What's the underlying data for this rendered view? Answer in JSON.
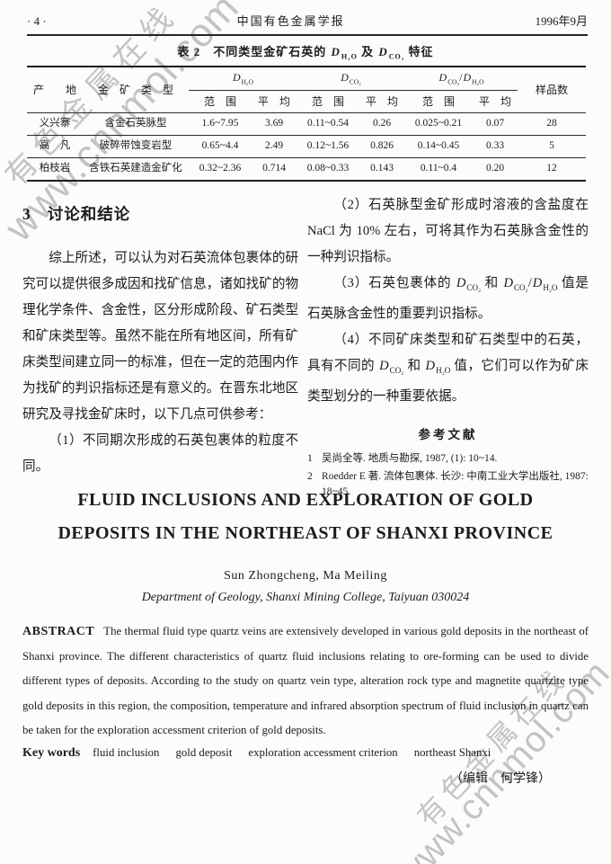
{
  "watermark": {
    "site_name": "有色金属在线",
    "site_url": "www.cnnmol.com"
  },
  "header": {
    "page_number": "· 4 ·",
    "journal_title": "中国有色金属学报",
    "issue_date": "1996年9月"
  },
  "table": {
    "caption_rich": [
      {
        "t": "表 2　不同类型金矿石英的 "
      },
      {
        "i": "D"
      },
      {
        "s": "H₂O"
      },
      {
        "t": " 及 "
      },
      {
        "i": "D"
      },
      {
        "s": "CO₂"
      },
      {
        "t": " 特征"
      }
    ],
    "col_place": "产　　地",
    "col_type": "金　矿　类　型",
    "col_samples": "样品数",
    "groups": {
      "h2o": [
        {
          "i": "D"
        },
        {
          "s": "H₂O"
        }
      ],
      "co2": [
        {
          "i": "D"
        },
        {
          "s": "CO₂"
        }
      ],
      "ratio": [
        {
          "i": "D"
        },
        {
          "s": "CO₂"
        },
        {
          "t": "/"
        },
        {
          "i": "D"
        },
        {
          "s": "H₂O"
        }
      ]
    },
    "sub_range": "范　围",
    "sub_avg": "平　均",
    "rows": [
      {
        "place": "义兴寨",
        "type": "含金石英脉型",
        "h2o_range": "1.6~7.95",
        "h2o_avg": "3.69",
        "co2_range": "0.11~0.54",
        "co2_avg": "0.26",
        "ratio_range": "0.025~0.21",
        "ratio_avg": "0.07",
        "samples": "28"
      },
      {
        "place": "高　凡",
        "type": "破碎带蚀变岩型",
        "h2o_range": "0.65~4.4",
        "h2o_avg": "2.49",
        "co2_range": "0.12~1.56",
        "co2_avg": "0.826",
        "ratio_range": "0.14~0.45",
        "ratio_avg": "0.33",
        "samples": "5"
      },
      {
        "place": "柏枝岩",
        "type": "含铁石英建造金矿化",
        "h2o_range": "0.32~2.36",
        "h2o_avg": "0.714",
        "co2_range": "0.08~0.33",
        "co2_avg": "0.143",
        "ratio_range": "0.11~0.4",
        "ratio_avg": "0.20",
        "samples": "12"
      }
    ]
  },
  "discussion": {
    "section_number": "3",
    "section_title": "讨论和结论",
    "para_intro": "综上所述，可以认为对石英流体包裹体的研究可以提供很多成因和找矿信息，诸如找矿的物理化学条件、含金性，区分形成阶段、矿石类型和矿床类型等。虽然不能在所有地区间，所有矿床类型间建立同一的标准，但在一定的范围内作为找矿的判识指标还是有意义的。在晋东北地区研究及寻找金矿床时，以下几点可供参考：",
    "point1": "（1）不同期次形成的石英包裹体的粒度不同。",
    "point2": "（2）石英脉型金矿形成时溶液的含盐度在 NaCl 为 10% 左右，可将其作为石英脉含金性的一种判识指标。",
    "point3_rich": [
      {
        "t": "（3）石英包裹体的 "
      },
      {
        "i": "D"
      },
      {
        "s": "CO₂"
      },
      {
        "t": " 和 "
      },
      {
        "i": "D"
      },
      {
        "s": "CO₂"
      },
      {
        "t": "/"
      },
      {
        "i": "D"
      },
      {
        "s": "H₂O"
      },
      {
        "t": " 值是石英脉含金性的重要判识指标。"
      }
    ],
    "point4_rich": [
      {
        "t": "（4）不同矿床类型和矿石类型中的石英，具有不同的 "
      },
      {
        "i": "D"
      },
      {
        "s": "CO₂"
      },
      {
        "t": " 和 "
      },
      {
        "i": "D"
      },
      {
        "s": "H₂O"
      },
      {
        "t": " 值，它们可以作为矿床类型划分的一种重要依据。"
      }
    ]
  },
  "references": {
    "heading": "参考文献",
    "items": [
      {
        "num": "1",
        "text": "吴尚全等. 地质与勘探, 1987, (1): 10~14."
      },
      {
        "num": "2",
        "text": "Roedder E 著. 流体包裹体. 长沙: 中南工业大学出版社, 1987: 18~45."
      }
    ]
  },
  "english": {
    "title_line1": "FLUID INCLUSIONS AND EXPLORATION OF GOLD",
    "title_line2": "DEPOSITS IN THE NORTHEAST OF SHANXI PROVINCE",
    "authors": "Sun Zhongcheng,  Ma Meiling",
    "affiliation": "Department of Geology,  Shanxi Mining College,  Taiyuan 030024",
    "abstract_label": "ABSTRACT",
    "abstract_text": "The thermal fluid type quartz veins are extensively developed in various gold deposits in the northeast of Shanxi province. The different characteristics of quartz fluid inclusions relating to ore-forming can be used to divide different types of deposits. According to the study on quartz vein type, alteration rock type and magnetite quartzite type gold deposits in this region, the composition, temperature and infrared absorption spectrum of fluid inclusion in quartz can be taken for the exploration accessment criterion of gold deposits.",
    "keywords_label": "Key words",
    "keywords": [
      "fluid inclusion",
      "gold deposit",
      "exploration accessment criterion",
      "northeast Shanxi"
    ],
    "editor_note": "（编辑　何学锋）"
  }
}
